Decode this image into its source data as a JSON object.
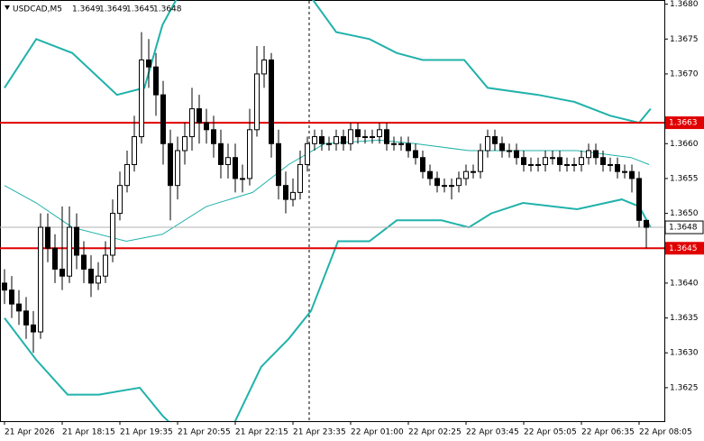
{
  "chart_data": {
    "type": "candlestick",
    "title": "USDCAD,M5",
    "header_ohlc": [
      1.3649,
      1.3649,
      1.3645,
      1.3648
    ],
    "xlim": [
      -0.625,
      91.5
    ],
    "ylim": [
      1.36202,
      1.36806
    ],
    "xticks": [
      {
        "value": 0,
        "label": "21 Apr 2026"
      },
      {
        "value": 8,
        "label": "21 Apr 18:15"
      },
      {
        "value": 16,
        "label": "21 Apr 19:35"
      },
      {
        "value": 24,
        "label": "21 Apr 20:55"
      },
      {
        "value": 32,
        "label": "21 Apr 22:15"
      },
      {
        "value": 40,
        "label": "21 Apr 23:35"
      },
      {
        "value": 48,
        "label": "22 Apr 01:00"
      },
      {
        "value": 56,
        "label": "22 Apr 02:25"
      },
      {
        "value": 64,
        "label": "22 Apr 03:45"
      },
      {
        "value": 72,
        "label": "22 Apr 05:05"
      },
      {
        "value": 80,
        "label": "22 Apr 06:35"
      },
      {
        "value": 88,
        "label": "22 Apr 08:05"
      }
    ],
    "yticks": [
      {
        "value": 1.368,
        "label": "1.3680"
      },
      1.3675,
      {
        "value": 1.367,
        "label": "1.3670"
      },
      {
        "value": 1.366,
        "label": "1.3660"
      },
      1.3655,
      {
        "value": 1.365,
        "label": "1.3650"
      },
      {
        "value": 1.364,
        "label": "1.3640"
      },
      1.3635,
      {
        "value": 1.363,
        "label": "1.3630"
      },
      1.3625
    ],
    "open": [
      1.364,
      1.3639,
      1.3637,
      1.3636,
      1.3634,
      1.3633,
      1.3648,
      1.3645,
      1.3642,
      1.3641,
      1.3648,
      1.3644,
      1.3642,
      1.364,
      1.3641,
      1.3644,
      1.365,
      1.3654,
      1.3657,
      1.3661,
      1.3672,
      1.3671,
      1.3667,
      1.366,
      1.3654,
      1.3659,
      1.3661,
      1.3665,
      1.3663,
      1.3662,
      1.366,
      1.3657,
      1.3658,
      1.3655,
      1.3655,
      1.3662,
      1.367,
      1.3672,
      1.366,
      1.3654,
      1.3652,
      1.3653,
      1.3657,
      1.366,
      1.3661,
      1.366,
      1.366,
      1.3661,
      1.366,
      1.3662,
      1.3661,
      1.3661,
      1.3661,
      1.3662,
      1.366,
      1.366,
      1.366,
      1.3659,
      1.3658,
      1.3656,
      1.3655,
      1.3654,
      1.3654,
      1.3654,
      1.3655,
      1.3656,
      1.3656,
      1.3659,
      1.3661,
      1.366,
      1.3659,
      1.3659,
      1.3658,
      1.3657,
      1.3657,
      1.3657,
      1.3658,
      1.3658,
      1.3657,
      1.3657,
      1.3657,
      1.3658,
      1.3659,
      1.3658,
      1.3657,
      1.3657,
      1.3656,
      1.3656,
      1.3655,
      1.3649
    ],
    "high": [
      1.3642,
      1.3641,
      1.3639,
      1.3638,
      1.3636,
      1.365,
      1.365,
      1.3647,
      1.3651,
      1.3651,
      1.365,
      1.3646,
      1.3644,
      1.3643,
      1.3646,
      1.3652,
      1.3656,
      1.3659,
      1.3664,
      1.3676,
      1.3675,
      1.3673,
      1.3669,
      1.3662,
      1.3661,
      1.3663,
      1.3668,
      1.3667,
      1.3665,
      1.3664,
      1.3662,
      1.366,
      1.366,
      1.3657,
      1.3665,
      1.3674,
      1.3674,
      1.3673,
      1.3662,
      1.3656,
      1.3655,
      1.3659,
      1.3661,
      1.3662,
      1.3662,
      1.3661,
      1.3662,
      1.3662,
      1.3663,
      1.3663,
      1.3662,
      1.3662,
      1.3663,
      1.3663,
      1.3661,
      1.3661,
      1.3661,
      1.366,
      1.3659,
      1.3657,
      1.3656,
      1.3655,
      1.3655,
      1.3656,
      1.3657,
      1.3657,
      1.366,
      1.3662,
      1.3662,
      1.3661,
      1.366,
      1.366,
      1.3659,
      1.3658,
      1.3658,
      1.3659,
      1.3659,
      1.3659,
      1.3658,
      1.3658,
      1.3659,
      1.366,
      1.366,
      1.3659,
      1.3658,
      1.3658,
      1.3657,
      1.3657,
      1.3656,
      1.3649
    ],
    "low": [
      1.3637,
      1.3635,
      1.3634,
      1.3632,
      1.363,
      1.3632,
      1.3643,
      1.364,
      1.3639,
      1.364,
      1.3642,
      1.364,
      1.3638,
      1.3639,
      1.364,
      1.3643,
      1.3649,
      1.3653,
      1.3656,
      1.366,
      1.3668,
      1.3664,
      1.3657,
      1.3649,
      1.3652,
      1.3657,
      1.3659,
      1.366,
      1.366,
      1.3658,
      1.3655,
      1.3655,
      1.3653,
      1.3653,
      1.3654,
      1.3661,
      1.3668,
      1.3658,
      1.3652,
      1.365,
      1.3651,
      1.3652,
      1.3656,
      1.3659,
      1.3659,
      1.3659,
      1.3659,
      1.3659,
      1.3659,
      1.366,
      1.366,
      1.366,
      1.366,
      1.3659,
      1.3659,
      1.3659,
      1.3658,
      1.3657,
      1.3655,
      1.3654,
      1.3653,
      1.3653,
      1.3652,
      1.3653,
      1.3654,
      1.3655,
      1.3655,
      1.3658,
      1.3659,
      1.3658,
      1.3658,
      1.3657,
      1.3656,
      1.3656,
      1.3656,
      1.3656,
      1.3657,
      1.3656,
      1.3656,
      1.3656,
      1.3656,
      1.3657,
      1.3657,
      1.3656,
      1.3656,
      1.3655,
      1.3655,
      1.3653,
      1.3648,
      1.3645
    ],
    "close": [
      1.3639,
      1.3637,
      1.3636,
      1.3634,
      1.3633,
      1.3648,
      1.3645,
      1.3642,
      1.3641,
      1.3648,
      1.3644,
      1.3642,
      1.364,
      1.3641,
      1.3644,
      1.365,
      1.3654,
      1.3657,
      1.3661,
      1.3672,
      1.3671,
      1.3667,
      1.366,
      1.3654,
      1.3659,
      1.3661,
      1.3665,
      1.3663,
      1.3662,
      1.366,
      1.3657,
      1.3658,
      1.3655,
      1.3655,
      1.3662,
      1.367,
      1.3672,
      1.366,
      1.3654,
      1.3652,
      1.3653,
      1.3657,
      1.366,
      1.3661,
      1.366,
      1.366,
      1.3661,
      1.366,
      1.3662,
      1.3661,
      1.3661,
      1.3661,
      1.3662,
      1.366,
      1.366,
      1.366,
      1.3659,
      1.3658,
      1.3656,
      1.3655,
      1.3654,
      1.3654,
      1.3654,
      1.3655,
      1.3656,
      1.3656,
      1.3659,
      1.3661,
      1.366,
      1.3659,
      1.3659,
      1.3658,
      1.3657,
      1.3657,
      1.3657,
      1.3658,
      1.3658,
      1.3657,
      1.3657,
      1.3657,
      1.3658,
      1.3659,
      1.3658,
      1.3657,
      1.3657,
      1.3656,
      1.3656,
      1.3655,
      1.3649,
      1.3648
    ],
    "bands": [
      {
        "color": "#20b2aa",
        "width": 2,
        "x": [
          0,
          4.4,
          9.4,
          15.6,
          19.4,
          21.9,
          24,
          27,
          30,
          33,
          36,
          39,
          42.5,
          46,
          50.6,
          54.4,
          58,
          63.75,
          67,
          74,
          79,
          84,
          88,
          89.6
        ],
        "values": [
          1.3668,
          1.3675,
          1.3673,
          1.3667,
          1.3668,
          1.3677,
          1.3681,
          1.3688,
          1.369,
          1.3688,
          1.3686,
          1.3684,
          1.3681,
          1.3676,
          1.3675,
          1.3673,
          1.3672,
          1.3672,
          1.3668,
          1.3667,
          1.3666,
          1.3664,
          1.3663,
          1.3665
        ]
      },
      {
        "color": "#20b2aa",
        "width": 1,
        "x": [
          0,
          4.4,
          9.4,
          16.9,
          21.9,
          28,
          34.4,
          39.4,
          44.4,
          51.9,
          56.9,
          64.4,
          69.4,
          79.4,
          86.9,
          89.4
        ],
        "values": [
          1.3654,
          1.36515,
          1.3648,
          1.3646,
          1.3647,
          1.3651,
          1.3653,
          1.3657,
          1.366,
          1.36605,
          1.366,
          1.3659,
          1.3659,
          1.3659,
          1.3658,
          1.3657
        ]
      },
      {
        "color": "#20b2aa",
        "width": 2,
        "x": [
          0,
          4.4,
          8.75,
          13.1,
          18.75,
          21.9,
          26.9,
          31.9,
          35.6,
          39.4,
          42.5,
          46.25,
          50.6,
          54.4,
          60.6,
          64.4,
          67.5,
          71.9,
          79.4,
          85.6,
          88,
          89.6
        ],
        "values": [
          1.3635,
          1.3629,
          1.3624,
          1.3624,
          1.3625,
          1.3621,
          1.3616,
          1.362,
          1.3628,
          1.3632,
          1.3636,
          1.3646,
          1.3646,
          1.3649,
          1.3649,
          1.3648,
          1.365,
          1.36515,
          1.36506,
          1.3652,
          1.3651,
          1.3648
        ]
      }
    ],
    "levels": [
      {
        "value": 1.3663,
        "label": "1.3663",
        "color": "#e00000"
      },
      {
        "value": 1.3645,
        "label": "1.3645",
        "color": "#e00000"
      }
    ],
    "price_line": 1.3648
  }
}
